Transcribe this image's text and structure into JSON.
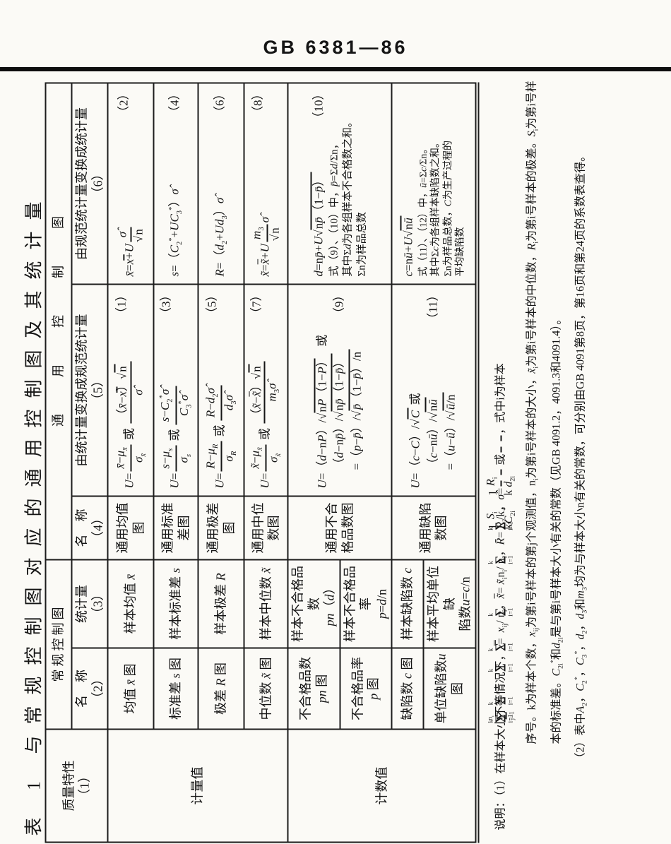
{
  "page_header": {
    "standard_no": "GB  6381—86"
  },
  "sheet": {
    "caption": "表 1  与常规控制图对应的通用控制图及其统计量",
    "table": {
      "header": {
        "quality_characteristic": "质量特性",
        "quality_characteristic_no": "（1）",
        "conventional_group": "常规控制图",
        "universal_group": "通用控制图",
        "name2": "名　称",
        "name2_no": "（2）",
        "statistic3": "统计量",
        "statistic3_no": "（3）",
        "name4": "名　称",
        "name4_no": "（4）",
        "col5": "由统计量变换成规范统计量",
        "col5_no": "（5）",
        "col6": "由规范统计量变换成统计量",
        "col6_no": "（6）"
      },
      "groups": {
        "variables": "计量值",
        "attributes": "计数值"
      },
      "rows": [
        {
          "name2": "均值<i> x̄ </i>图",
          "stat3": "样本均值<i> x̄</i>",
          "name4": "通用均值图",
          "f5": "<span class='no-wrap'><i>U</i>=<span class='fr'><span class='nu'><i>x̄</i>−<i>μ</i><sub><i>x̄</i></sub></span><span class='de'><i>σ</i><sub><i>x̄</i></sub></span></span> 或 <span class='fr'><span class='nu'>（<i>x̄</i>−<i>x̿</i>）<span class='sq'>√<span class='rad'>n</span></span></span><span class='de'><i>σ̂</i></span></span></span><span class='no'>（1）</span>",
          "f6": "<span class='no-wrap'><i>x̄</i>=<i>x̿</i>+<i>U</i><span class='fr'><span class='nu'><i>σ̂</i></span><span class='de'><span class='sq'>√<span class='rad'>n</span></span></span></span></span><span class='no'>（2）</span>"
        },
        {
          "name2": "标准差<i> s </i>图",
          "stat3": "样本标准差<i> s</i>",
          "name4": "通用标准差图",
          "f5": "<span class='no-wrap'><i>U</i>=<span class='fr'><span class='nu'><i>s</i>−<i>μ</i><sub><i>s</i></sub></span><span class='de'><i>σ</i><sub><i>s</i></sub></span></span> 或 <span class='fr'><span class='nu'><i>s</i>−<i>C</i><sub>2</sub><sup>*</sup><i>σ̂</i></span><span class='de'><i>C</i><sub>3</sub><sup>*</sup><i>σ̂</i></span></span></span><span class='no'>（3）</span>",
          "f6": "<span class='no-wrap'><i>s</i>=（<i>C</i><sub>2</sub><sup>*</sup>+<i>UC</i><sub>3</sub><sup>*</sup>）<i>σ̂</i></span><span class='no'>（4）</span>"
        },
        {
          "name2": "极差<i> R </i>图",
          "stat3": "样本极差<i> R</i>",
          "name4": "通用极差图",
          "f5": "<span class='no-wrap'><i>U</i>=<span class='fr'><span class='nu'><i>R</i>−<i>μ</i><sub><i>R</i></sub></span><span class='de'><i>σ</i><sub><i>R</i></sub></span></span> 或 <span class='fr'><span class='nu'><i>R</i>−<i>d</i><sub>2</sub><i>σ̂</i></span><span class='de'><i>d</i><sub>3</sub><i>σ̂</i></span></span></span><span class='no'>（5）</span>",
          "f6": "<span class='no-wrap'><i>R</i>=（<i>d</i><sub>2</sub>+<i>Ud</i><sub>3</sub>）<i>σ̂</i></span><span class='no'>（6）</span>"
        },
        {
          "name2": "中位数<i> x̃ </i>图",
          "stat3": "样本中位数<i> x̃</i>",
          "name4": "通用中位数图",
          "f5": "<span class='no-wrap'><i>U</i>=<span class='fr'><span class='nu'><i>x̃</i>−<i>μ</i><sub><i>x̃</i></sub></span><span class='de'><i>σ</i><sub><i>x̃</i></sub></span></span> 或 <span class='fr'><span class='nu'>（<i>x̃</i>−<span class='ovl'><i>x̃</i></span>）<span class='sq'>√<span class='rad'>n</span></span></span><span class='de'><i>m</i><sub>3</sub><i>σ̂</i></span></span></span><span class='no'>（7）</span>",
          "f6": "<span class='no-wrap'><i>x̃</i>=<span class='ovl'><i>x̃</i></span>+<i>U</i><span class='fr'><span class='nu'><i>m</i><sub>3</sub></span><span class='de'><span class='sq'>√<span class='rad'>n</span></span></span></span><i>σ̂</i></span><span class='no'>（8）</span>"
        },
        {
          "name2": "不合格品数<br><i>pn</i> 图",
          "stat3": "样本不合格品数<br><i>pn</i>（<i>d</i>）",
          "name4": "通用不合<br>格品数图",
          "f5": "<div class='fmline'><i>U</i>=（<i>d</i>−n<i>P</i>）/<span class='sq'>√<span class='rad'>n<i>P</i>（1−<i>P</i>）</span></span>　或</div><div class='fmline ind'>（<i>d</i>−n<i>p̄</i>）/<span class='sq'>√<span class='rad'>n<i>p̄</i>（1−<i>p̄</i>）</span></span><span class='no'>（9）</span></div><div class='fmline ind'>=（<i>p</i>−<i>p̄</i>）/<span class='sq'>√<span class='rad'><i>p̄</i>（1−<i>p̄</i>）/n</span></span></div>",
          "f6": "<div class='fmline'><i>d</i>=n<i>p̄</i>+<i>U</i><span class='sq'>√<span class='rad'>n<i>p̄</i>（1−<i>p̄</i>）</span></span><span class='no'>（10）</span></div><div class='expl'>式（9）、（10）中，<i>p̄</i>=Σ<i>d</i>/Σn，</div><div class='expl'>其中Σ<i>d</i>为各组样本不合格数之和。</div><div class='expl'>Σn为样品总数</div>"
        },
        {
          "name2": "不合格品率<br><i>p</i> 图",
          "stat3": "样本不合格品率<br><i>p</i>=<i>d</i>/n"
        },
        {
          "name2": "缺陷数 <i>c</i> 图",
          "stat3": "样本缺陷数 <i>c</i>",
          "name4": "通用缺陷数图",
          "f5": "<div class='fmline'><i>U</i>=（<i>c</i>−<i>C</i>）/<span class='sq'>√<span class='rad'><i>C</i></span></span> 或</div><div class='fmline ind'>（<i>c</i>−n<i>ū</i>）/<span class='sq'>√<span class='rad'>n<i>ū</i></span></span><span class='no'>（11）</span></div><div class='fmline ind'>=（<i>u</i>−<i>ū</i>）/<span class='sq'>√<span class='rad'><i>ū</i>/n</span></span></div>",
          "f6": "<div class='fmline'><i>c</i>=n<i>ū</i>+<i>U</i><span class='sq'>√<span class='rad'>n<i>ū</i></span></span></div><div class='expl'>式（11）、（12）中，<i>ū</i>=Σ<i>c</i>/Σn。</div><div class='expl'>其中Σ<i>c</i>为各组样本缺陷数之和。</div><div class='expl'>Σn为样品总数，<i>C</i>为生产过程的</div><div class='expl'>平均缺陷数</div>"
        },
        {
          "name2": "单位缺陷数<i>u</i><br>图",
          "stat3": "样本平均单位缺<br>陷数<i>u</i>=<i>c</i>/n"
        }
      ]
    },
    "notes": {
      "l1": "说明：（1）在样本大小不等情况下，<i>x̿</i>=<span class='bs'><span>k</span><span class='sg'>Σ</span><span>i=1</span></span><span class='bs'><span>n<sub>i</sub></span><span class='sg'>Σ</span><span>j=1</span></span><i>x</i><sub>ij</sub>/<span class='bs'><span>k</span><span class='sg'>Σ</span><span>i=1</span></span>n<sub>i</sub>，<span class='ovl'><i>x̃</i></span>=<span class='bs'><span>k</span><span class='sg'>Σ</span><span>i=1</span></span><i>x̃</i><sub>i</sub>n<sub>i</sub>/<span class='bs'><span>k</span><span class='sg'>Σ</span><span>i=1</span></span>n<sub>i</sub>，<i>R̄</i>=<span class='bs'><span>k</span><span class='sg'>Σ</span><span>i=1</span></span><i>R</i><sub>i</sub>/k，<i>σ̂</i>=<span class='fr'><span class='nu'>1</span><span class='de'>k</span></span><span class='bs'><span>k</span><span class='sg'>Σ</span><span>i=1</span></span><span class='fr'><span class='nu'><i>S</i><sub>i</sub></span><span class='de'><i>C</i><sub>2i</sub><sup>*</sup></span></span> 或<span class='fr'><span class='nu'>1</span><span class='de'>k</span></span><span class='bs'><span>k</span><span class='sg'>Σ</span><span>i=1</span></span><span class='fr'><span class='nu'><i>R</i><sub>i</sub></span><span class='de'><i>d</i><sub>2i</sub></span></span>，式中i为样本",
      "l2": "序号。k为样本个数，<i>x</i><sub>ij</sub>为第i号样本的第j个观测值，n<sub>i</sub>为第i号样本的大小，<i>x̃</i><sub>i</sub>为第i号样本的中位数，<i>R</i><sub>i</sub>为第i号样本的极差。<i>S</i><sub>i</sub>为第i号样",
      "l3": "本的标准差。<i>C</i><sub>2i</sub><sup>*</sup>和<i>d</i><sub>2i</sub>是与第i号样本大小有关的常数（见GB 4091.2，4091.3和4091.4）。",
      "l4": "（2）表中<i>A</i><sub>2</sub>，<i>C</i><sub>2</sub><sup>*</sup>，<i>C</i><sub>3</sub><sup>*</sup>，<i>d</i><sub>2</sub>，<i>d</i><sub>3</sub>和<i>m</i><sub>3</sub>均为与样本大小n有关的常数，可分别由GB 4091第8页，第16页和第24页的系数表查得。"
    }
  }
}
